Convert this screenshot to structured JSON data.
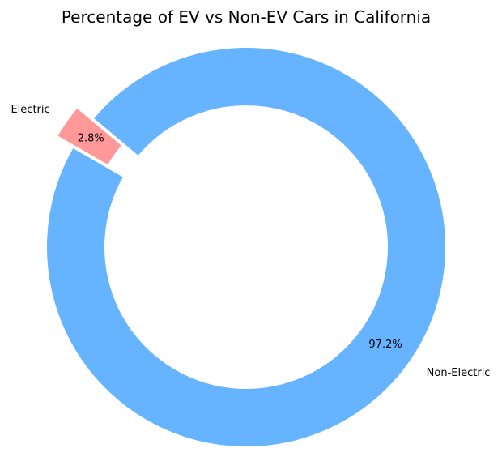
{
  "chart_data": {
    "type": "pie",
    "title": "Percentage of EV vs Non-EV Cars in California",
    "slices": [
      {
        "label": "Electric",
        "value": 2.8,
        "pct_label": "2.8%",
        "color": "#ff9999",
        "exploded": true
      },
      {
        "label": "Non-Electric",
        "value": 97.2,
        "pct_label": "97.2%",
        "color": "#66b3ff",
        "exploded": false
      }
    ],
    "donut": true,
    "start_angle_deg": 140,
    "direction": "counterclockwise",
    "legend": "none"
  }
}
